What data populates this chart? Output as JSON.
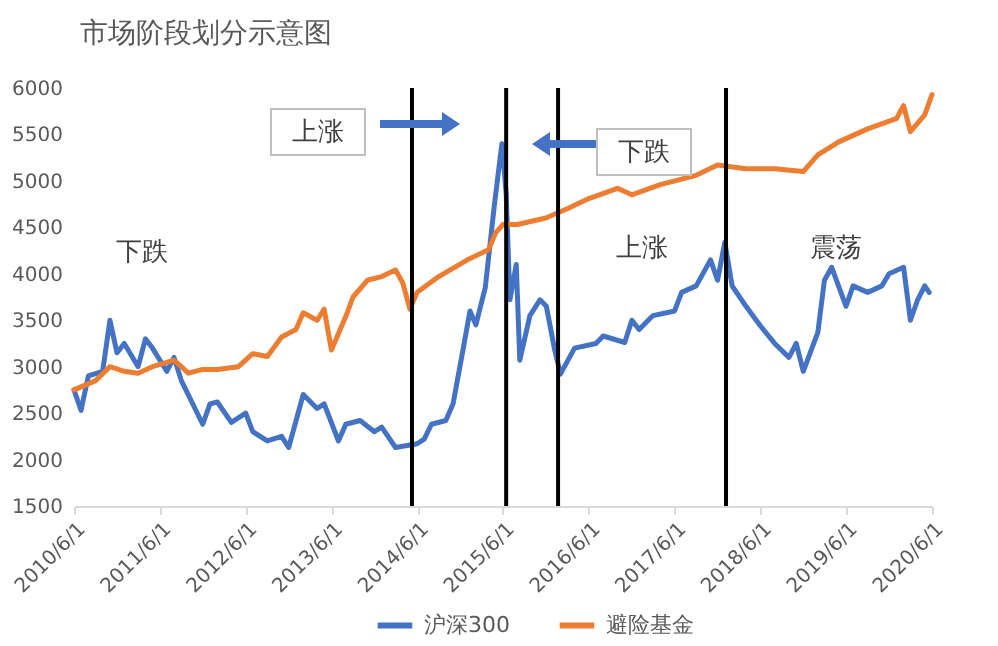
{
  "chart_data": {
    "type": "line",
    "title": "市场阶段划分示意图",
    "x": [
      "2010-06-01",
      "2010-07-01",
      "2010-08-01",
      "2010-10-01",
      "2010-11-01",
      "2010-12-01",
      "2011-01-01",
      "2011-03-01",
      "2011-04-01",
      "2011-05-01",
      "2011-07-01",
      "2011-08-01",
      "2011-09-01",
      "2011-12-01",
      "2012-01-01",
      "2012-02-01",
      "2012-04-01",
      "2012-06-01",
      "2012-07-01",
      "2012-09-01",
      "2012-11-01",
      "2012-12-01",
      "2013-02-01",
      "2013-04-01",
      "2013-05-01",
      "2013-07-01",
      "2013-08-01",
      "2013-10-01",
      "2013-12-01",
      "2014-01-01",
      "2014-03-01",
      "2014-06-01",
      "2014-07-01",
      "2014-08-01",
      "2014-10-01",
      "2014-11-01",
      "2014-12-18",
      "2015-01-12",
      "2015-02-06",
      "2015-03-18",
      "2015-04-24",
      "2015-05-18",
      "2015-05-28",
      "2015-06-15",
      "2015-07-01",
      "2015-07-28",
      "2015-08-12",
      "2015-09-24",
      "2015-11-06",
      "2015-12-03",
      "2016-01-06",
      "2016-02-01",
      "2016-04-01",
      "2016-07-01",
      "2016-08-01",
      "2016-11-01",
      "2016-12-01",
      "2017-01-01",
      "2017-03-01",
      "2017-06-01",
      "2017-07-01",
      "2017-09-01",
      "2017-11-01",
      "2017-12-01",
      "2018-01-01",
      "2018-02-01",
      "2018-04-01",
      "2018-06-01",
      "2018-08-01",
      "2018-10-01",
      "2018-11-01",
      "2018-12-01",
      "2019-02-01",
      "2019-03-01",
      "2019-04-01",
      "2019-06-01",
      "2019-07-01",
      "2019-09-01",
      "2019-11-01",
      "2019-12-01",
      "2020-02-01",
      "2020-03-01",
      "2020-04-01",
      "2020-05-01",
      "2020-05-20"
    ],
    "series": [
      {
        "name": "沪深300",
        "color": "#4472c4",
        "values": [
          2750,
          2530,
          2900,
          2950,
          3500,
          3150,
          3250,
          3000,
          3300,
          3200,
          2950,
          3100,
          2850,
          2380,
          2600,
          2620,
          2400,
          2500,
          2300,
          2200,
          2250,
          2130,
          2700,
          2550,
          2600,
          2200,
          2380,
          2420,
          2300,
          2350,
          2130,
          2170,
          2220,
          2380,
          2420,
          2600,
          3250,
          3600,
          3450,
          3850,
          4700,
          5200,
          5400,
          4860,
          3720,
          4100,
          3070,
          3550,
          3720,
          3650,
          3200,
          2920,
          3200,
          3250,
          3330,
          3260,
          3500,
          3400,
          3550,
          3600,
          3800,
          3870,
          4150,
          3930,
          4340,
          3870,
          3650,
          3440,
          3250,
          3100,
          3250,
          2950,
          3370,
          3930,
          4070,
          3650,
          3870,
          3800,
          3870,
          4000,
          4070,
          3500,
          3720,
          3870,
          3800
        ]
      },
      {
        "name": "避险基金",
        "color": "#ed7d31",
        "x": [
          "2010-06-01",
          "2010-09-01",
          "2010-11-01",
          "2011-01-01",
          "2011-03-01",
          "2011-05-01",
          "2011-08-01",
          "2011-10-01",
          "2011-12-01",
          "2012-02-01",
          "2012-05-01",
          "2012-07-01",
          "2012-09-01",
          "2012-11-01",
          "2013-01-01",
          "2013-02-01",
          "2013-04-01",
          "2013-05-01",
          "2013-06-01",
          "2013-08-01",
          "2013-09-01",
          "2013-11-01",
          "2014-01-01",
          "2014-03-01",
          "2014-04-01",
          "2014-05-01",
          "2014-06-01",
          "2014-09-01",
          "2015-01-01",
          "2015-04-01",
          "2015-05-01",
          "2015-06-01",
          "2015-08-01",
          "2015-12-01",
          "2016-03-01",
          "2016-06-01",
          "2016-10-01",
          "2016-12-01",
          "2017-04-01",
          "2017-09-01",
          "2017-12-01",
          "2018-04-01",
          "2018-08-01",
          "2018-12-01",
          "2019-02-01",
          "2019-05-01",
          "2019-09-01",
          "2020-01-01",
          "2020-02-01",
          "2020-03-01",
          "2020-05-01",
          "2020-06-01"
        ],
        "values": [
          2750,
          2850,
          3000,
          2950,
          2930,
          3000,
          3070,
          2930,
          2970,
          2970,
          3000,
          3140,
          3110,
          3320,
          3400,
          3580,
          3500,
          3620,
          3180,
          3540,
          3750,
          3930,
          3970,
          4040,
          3900,
          3620,
          3800,
          3970,
          4150,
          4260,
          4440,
          4530,
          4530,
          4600,
          4700,
          4810,
          4920,
          4850,
          4960,
          5060,
          5170,
          5130,
          5130,
          5100,
          5280,
          5420,
          5560,
          5670,
          5810,
          5530,
          5710,
          5930
        ]
      }
    ],
    "xlim": [
      "2010-06-01",
      "2020-06-01"
    ],
    "xticks": [
      {
        "value": "2010-06-01",
        "label": "2010/6/1"
      },
      {
        "value": "2011-06-01",
        "label": "2011/6/1"
      },
      {
        "value": "2012-06-01",
        "label": "2012/6/1"
      },
      {
        "value": "2013-06-01",
        "label": "2013/6/1"
      },
      {
        "value": "2014-06-01",
        "label": "2014/6/1"
      },
      {
        "value": "2015-06-01",
        "label": "2015/6/1"
      },
      {
        "value": "2016-06-01",
        "label": "2016/6/1"
      },
      {
        "value": "2017-06-01",
        "label": "2017/6/1"
      },
      {
        "value": "2018-06-01",
        "label": "2018/6/1"
      },
      {
        "value": "2019-06-01",
        "label": "2019/6/1"
      },
      {
        "value": "2020-06-01",
        "label": "2020/6/1"
      }
    ],
    "ylim": [
      1500,
      6000
    ],
    "yticks": [
      1500,
      2000,
      2500,
      3000,
      3500,
      4000,
      4500,
      5000,
      5500,
      6000
    ],
    "ref_lines": [
      {
        "axis": "x",
        "value": "2014-05-10",
        "color": "#000000"
      },
      {
        "axis": "x",
        "value": "2015-06-15",
        "color": "#000000"
      },
      {
        "axis": "x",
        "value": "2016-01-22",
        "color": "#000000"
      },
      {
        "axis": "x",
        "value": "2018-01-06",
        "color": "#000000"
      }
    ],
    "annotations": [
      "上涨",
      "下跌",
      "下跌",
      "上涨",
      "震荡"
    ],
    "legend": "bottom",
    "grid": false,
    "marker": "none",
    "line_style": "solid"
  }
}
